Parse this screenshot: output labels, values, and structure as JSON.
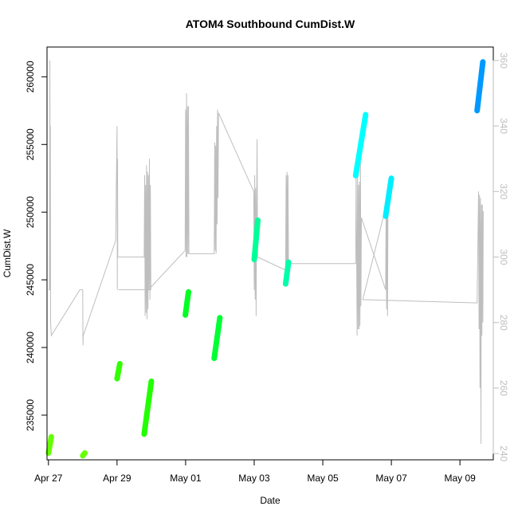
{
  "chart_data": {
    "type": "scatter",
    "title": "ATOM4 Southbound CumDist.W",
    "xlabel": "Date",
    "ylabel": "CumDist.W",
    "x_axis": {
      "kind": "date",
      "range": [
        "2021-04-26T23:00",
        "2021-05-09T23:20"
      ],
      "ticks": [
        {
          "value": "2021-04-27",
          "label": "Apr 27"
        },
        {
          "value": "2021-04-29",
          "label": "Apr 29"
        },
        {
          "value": "2021-05-01",
          "label": "May 01"
        },
        {
          "value": "2021-05-03",
          "label": "May 03"
        },
        {
          "value": "2021-05-05",
          "label": "May 05"
        },
        {
          "value": "2021-05-07",
          "label": "May 07"
        },
        {
          "value": "2021-05-09",
          "label": "May 09"
        }
      ]
    },
    "y_axis": {
      "range": [
        231700,
        262200
      ],
      "ticks": [
        235000,
        240000,
        245000,
        250000,
        255000,
        260000
      ]
    },
    "y2_axis": {
      "range": [
        238.1,
        364.1
      ],
      "ticks": [
        240,
        260,
        280,
        300,
        320,
        340,
        360
      ],
      "color": "#bebebe"
    },
    "grey_line": {
      "color": "#bebebe",
      "points": [
        [
          "2021-04-27T00:00",
          290
        ],
        [
          "2021-04-27T00:40",
          290
        ],
        [
          "2021-04-27T01:00",
          360
        ],
        [
          "2021-04-27T01:10",
          290
        ],
        [
          "2021-04-27T01:20",
          340
        ],
        [
          "2021-04-27T01:30",
          280
        ],
        [
          "2021-04-27T02:00",
          276
        ],
        [
          "2021-04-27T22:00",
          290
        ],
        [
          "2021-04-28T00:00",
          290
        ],
        [
          "2021-04-28T00:10",
          273
        ],
        [
          "2021-04-28T00:20",
          276
        ],
        [
          "2021-04-28T23:00",
          305
        ],
        [
          "2021-04-29T00:00",
          340
        ],
        [
          "2021-04-29T00:10",
          290
        ],
        [
          "2021-04-29T00:20",
          330
        ],
        [
          "2021-04-29T00:30",
          300
        ],
        [
          "2021-04-29T19:00",
          300
        ],
        [
          "2021-04-29T19:20",
          325
        ],
        [
          "2021-04-29T19:40",
          282
        ],
        [
          "2021-04-29T20:00",
          322
        ],
        [
          "2021-04-29T20:20",
          283
        ],
        [
          "2021-04-29T20:40",
          328
        ],
        [
          "2021-04-29T21:00",
          281
        ],
        [
          "2021-04-29T21:20",
          326
        ],
        [
          "2021-04-29T21:40",
          284
        ],
        [
          "2021-04-29T22:00",
          325
        ],
        [
          "2021-04-29T22:20",
          290
        ],
        [
          "2021-04-29T22:40",
          330
        ],
        [
          "2021-04-29T23:00",
          287
        ],
        [
          "2021-04-29T23:20",
          322
        ],
        [
          "2021-04-29T23:40",
          290
        ],
        [
          "2021-04-29T01:00",
          290
        ],
        [
          "2021-04-29T22:00",
          290
        ],
        [
          "2021-04-30T23:40",
          302
        ],
        [
          "2021-05-01T00:00",
          345
        ],
        [
          "2021-05-01T00:20",
          300
        ],
        [
          "2021-05-01T00:40",
          350
        ],
        [
          "2021-05-01T01:00",
          300
        ],
        [
          "2021-05-01T01:20",
          346
        ],
        [
          "2021-05-01T01:40",
          301
        ],
        [
          "2021-05-01T02:00",
          346
        ],
        [
          "2021-05-01T02:20",
          301
        ],
        [
          "2021-05-01T20:00",
          301
        ],
        [
          "2021-05-01T20:20",
          335
        ],
        [
          "2021-05-01T20:40",
          302
        ],
        [
          "2021-05-01T21:00",
          334
        ],
        [
          "2021-05-01T21:20",
          301
        ],
        [
          "2021-05-01T21:40",
          340
        ],
        [
          "2021-05-01T22:00",
          310
        ],
        [
          "2021-05-01T22:20",
          345
        ],
        [
          "2021-05-01T22:40",
          318
        ],
        [
          "2021-05-01T23:00",
          344
        ],
        [
          "2021-05-02T23:40",
          320
        ],
        [
          "2021-05-03T00:00",
          290
        ],
        [
          "2021-05-03T00:20",
          325
        ],
        [
          "2021-05-03T00:40",
          287
        ],
        [
          "2021-05-03T01:00",
          321
        ],
        [
          "2021-05-03T01:20",
          282
        ],
        [
          "2021-05-03T01:40",
          315
        ],
        [
          "2021-05-03T02:00",
          336
        ],
        [
          "2021-05-03T02:20",
          300
        ],
        [
          "2021-05-03T22:00",
          296
        ],
        [
          "2021-05-03T22:20",
          325
        ],
        [
          "2021-05-03T22:40",
          294
        ],
        [
          "2021-05-03T23:00",
          326
        ],
        [
          "2021-05-03T23:20",
          292
        ],
        [
          "2021-05-03T23:40",
          325
        ],
        [
          "2021-05-04T00:00",
          298
        ],
        [
          "2021-05-05T23:00",
          298
        ],
        [
          "2021-05-05T23:20",
          327
        ],
        [
          "2021-05-06T00:00",
          276
        ],
        [
          "2021-05-06T00:20",
          325
        ],
        [
          "2021-05-06T00:40",
          278
        ],
        [
          "2021-05-06T01:00",
          322
        ],
        [
          "2021-05-06T01:20",
          278
        ],
        [
          "2021-05-06T01:40",
          323
        ],
        [
          "2021-05-06T02:00",
          279
        ],
        [
          "2021-05-06T02:20",
          330
        ],
        [
          "2021-05-06T02:40",
          285
        ],
        [
          "2021-05-06T03:00",
          312
        ],
        [
          "2021-05-06T20:00",
          290
        ],
        [
          "2021-05-06T20:20",
          315
        ],
        [
          "2021-05-06T20:40",
          284
        ],
        [
          "2021-05-06T21:00",
          320
        ],
        [
          "2021-05-06T21:20",
          282
        ],
        [
          "2021-05-06T21:40",
          318
        ],
        [
          "2021-05-06T04:00",
          287
        ],
        [
          "2021-05-09T12:00",
          286
        ],
        [
          "2021-05-09T13:00",
          320
        ],
        [
          "2021-05-09T13:20",
          278
        ],
        [
          "2021-05-09T13:40",
          319
        ],
        [
          "2021-05-09T14:00",
          260
        ],
        [
          "2021-05-09T14:20",
          318
        ],
        [
          "2021-05-09T14:40",
          243
        ],
        [
          "2021-05-09T15:00",
          316
        ],
        [
          "2021-05-09T15:20",
          276
        ],
        [
          "2021-05-09T15:40",
          316
        ],
        [
          "2021-05-09T16:00",
          280
        ],
        [
          "2021-05-09T16:20",
          314
        ]
      ]
    },
    "series": [
      {
        "color": "#66ff00",
        "start": [
          "2021-04-27T00:00",
          232200
        ],
        "end": [
          "2021-04-27T02:00",
          233400
        ]
      },
      {
        "color": "#66ff00",
        "start": [
          "2021-04-28T00:00",
          232000
        ],
        "end": [
          "2021-04-28T01:30",
          232200
        ]
      },
      {
        "color": "#33ff00",
        "start": [
          "2021-04-29T00:00",
          237700
        ],
        "end": [
          "2021-04-29T02:00",
          238800
        ]
      },
      {
        "color": "#22ff00",
        "start": [
          "2021-04-29T19:00",
          233600
        ],
        "end": [
          "2021-04-29T23:59",
          237500
        ]
      },
      {
        "color": "#00ff22",
        "start": [
          "2021-04-30T23:50",
          242400
        ],
        "end": [
          "2021-05-01T02:00",
          244100
        ]
      },
      {
        "color": "#00ff33",
        "start": [
          "2021-05-01T20:00",
          239200
        ],
        "end": [
          "2021-05-01T23:59",
          242200
        ]
      },
      {
        "color": "#00ff99",
        "start": [
          "2021-05-03T00:00",
          246500
        ],
        "end": [
          "2021-05-03T02:30",
          249400
        ]
      },
      {
        "color": "#00ffaa",
        "start": [
          "2021-05-03T22:00",
          244700
        ],
        "end": [
          "2021-05-04T00:00",
          246300
        ]
      },
      {
        "color": "#00ffff",
        "start": [
          "2021-05-05T23:00",
          252700
        ],
        "end": [
          "2021-05-06T06:00",
          257200
        ]
      },
      {
        "color": "#00eeff",
        "start": [
          "2021-05-06T20:00",
          249700
        ],
        "end": [
          "2021-05-07T00:00",
          252500
        ]
      },
      {
        "color": "#0099ff",
        "start": [
          "2021-05-09T12:00",
          257500
        ],
        "end": [
          "2021-05-09T16:00",
          261100
        ]
      }
    ]
  }
}
